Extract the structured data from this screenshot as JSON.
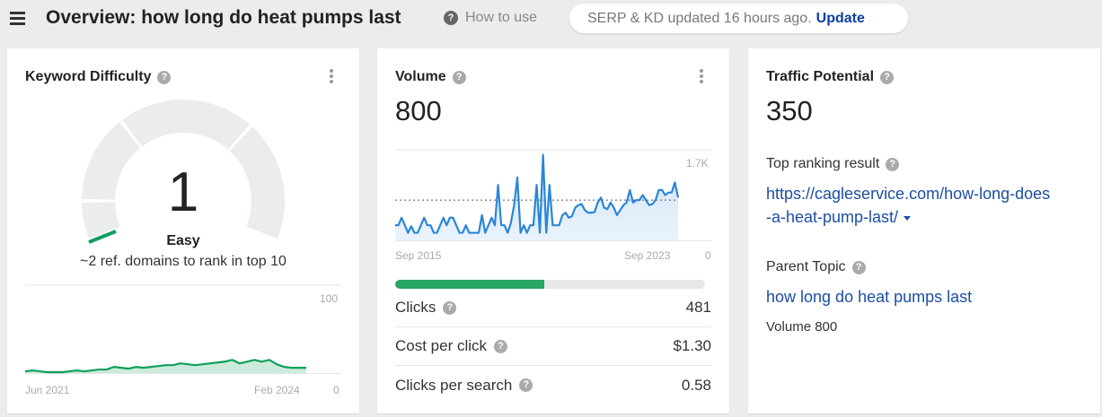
{
  "header": {
    "menu_icon": "hamburger-icon",
    "title": "Overview: how long do heat pumps last",
    "how_to_use": "How to use",
    "update_status": "SERP & KD updated 16 hours ago.",
    "update_link": "Update"
  },
  "keyword_difficulty": {
    "title": "Keyword Difficulty",
    "value": "1",
    "label": "Easy",
    "subtext": "~2 ref. domains to rank in top 10",
    "gauge_color": "#0e9f5c",
    "chart": {
      "x_start": "Jun 2021",
      "x_end": "Feb 2024",
      "y_max": "100",
      "y_min": "0",
      "values": [
        2,
        3,
        2,
        1,
        1,
        1,
        2,
        3,
        2,
        3,
        4,
        4,
        7,
        6,
        5,
        7,
        6,
        7,
        8,
        9,
        9,
        11,
        10,
        9,
        10,
        11,
        12,
        13,
        15,
        11,
        13,
        15,
        13,
        15,
        10,
        7,
        6,
        6,
        6
      ]
    }
  },
  "volume": {
    "title": "Volume",
    "value": "800",
    "chart": {
      "x_start": "Sep 2015",
      "x_end": "Sep 2023",
      "y_max": "1.7K",
      "y_min": "0",
      "avg_line": 800,
      "values": [
        300,
        300,
        450,
        300,
        150,
        280,
        150,
        150,
        300,
        450,
        300,
        300,
        150,
        150,
        300,
        450,
        300,
        450,
        450,
        300,
        150,
        150,
        300,
        150,
        150,
        150,
        150,
        500,
        150,
        300,
        450,
        300,
        1100,
        300,
        300,
        150,
        350,
        700,
        1250,
        150,
        300,
        150,
        300,
        300,
        1100,
        150,
        1700,
        150,
        1100,
        300,
        300,
        300,
        500,
        550,
        450,
        480,
        650,
        700,
        720,
        600,
        550,
        550,
        560,
        750,
        850,
        650,
        620,
        750,
        650,
        500,
        600,
        700,
        750,
        1000,
        750,
        800,
        800,
        900,
        800,
        700,
        720,
        800,
        1000,
        1000,
        900,
        950,
        950,
        1150,
        850
      ]
    },
    "clicks_share_pct": 48,
    "clicks_bar_color": "#27a562",
    "metrics": [
      {
        "label": "Clicks",
        "value": "481"
      },
      {
        "label": "Cost per click",
        "value": "$1.30"
      },
      {
        "label": "Clicks per search",
        "value": "0.58"
      }
    ]
  },
  "traffic_potential": {
    "title": "Traffic Potential",
    "value": "350",
    "top_ranking_label": "Top ranking result",
    "top_ranking_url_line1": "https://cagleservice.com/how-long-does",
    "top_ranking_url_line2": "-a-heat-pump-last/",
    "parent_topic_label": "Parent Topic",
    "parent_topic": "how long do heat pumps last",
    "parent_topic_volume": "Volume 800"
  }
}
